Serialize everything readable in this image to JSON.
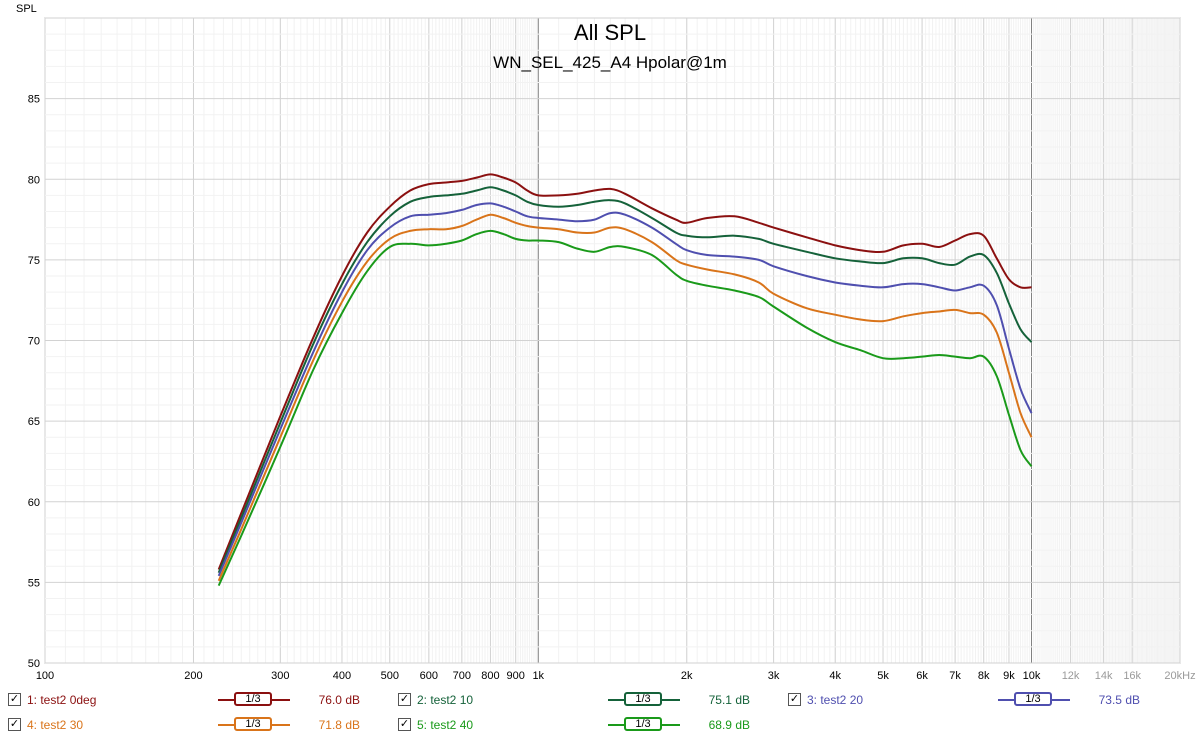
{
  "chart_data": {
    "type": "line",
    "title": "All SPL",
    "subtitle": "WN_SEL_425_A4 Hpolar@1m",
    "ylabel": "SPL",
    "xscale": "log",
    "xlim": [
      100,
      20000
    ],
    "ylim": [
      50,
      90
    ],
    "grid": true,
    "y_ticks": [
      "50",
      "55",
      "60",
      "65",
      "70",
      "75",
      "80",
      "85"
    ],
    "x_ticks": [
      {
        "v": 100,
        "label": "100"
      },
      {
        "v": 200,
        "label": "200"
      },
      {
        "v": 300,
        "label": "300"
      },
      {
        "v": 400,
        "label": "400"
      },
      {
        "v": 500,
        "label": "500"
      },
      {
        "v": 600,
        "label": "600"
      },
      {
        "v": 700,
        "label": "700"
      },
      {
        "v": 800,
        "label": "800"
      },
      {
        "v": 900,
        "label": "900"
      },
      {
        "v": 1000,
        "label": "1k"
      },
      {
        "v": 2000,
        "label": "2k"
      },
      {
        "v": 3000,
        "label": "3k"
      },
      {
        "v": 4000,
        "label": "4k"
      },
      {
        "v": 5000,
        "label": "5k"
      },
      {
        "v": 6000,
        "label": "6k"
      },
      {
        "v": 7000,
        "label": "7k"
      },
      {
        "v": 8000,
        "label": "8k"
      },
      {
        "v": 9000,
        "label": "9k"
      },
      {
        "v": 10000,
        "label": "10k"
      },
      {
        "v": 12000,
        "label": "12k"
      },
      {
        "v": 14000,
        "label": "14k"
      },
      {
        "v": 16000,
        "label": "16k"
      },
      {
        "v": 20000,
        "label": "20kHz"
      }
    ],
    "x": [
      225,
      250,
      300,
      350,
      400,
      450,
      500,
      550,
      600,
      650,
      700,
      750,
      800,
      850,
      900,
      950,
      1000,
      1100,
      1200,
      1300,
      1400,
      1500,
      1700,
      1900,
      2000,
      2200,
      2500,
      2800,
      3000,
      3500,
      4000,
      4500,
      5000,
      5500,
      6000,
      6500,
      7000,
      7500,
      8000,
      8500,
      9000,
      9500,
      10000
    ],
    "series": [
      {
        "name": "1: test2 0deg",
        "color": "#8B1010",
        "values": [
          55.8,
          59.3,
          65.3,
          70.2,
          74.0,
          76.7,
          78.3,
          79.3,
          79.7,
          79.8,
          79.9,
          80.1,
          80.3,
          80.1,
          79.8,
          79.3,
          79.0,
          79.0,
          79.1,
          79.3,
          79.4,
          79.1,
          78.2,
          77.5,
          77.3,
          77.6,
          77.7,
          77.3,
          77.0,
          76.4,
          75.9,
          75.6,
          75.5,
          75.9,
          76.0,
          75.8,
          76.2,
          76.6,
          76.5,
          75.1,
          73.8,
          73.3,
          73.3
        ]
      },
      {
        "name": "2: test2 10",
        "color": "#15623A",
        "values": [
          55.6,
          59.0,
          64.9,
          69.8,
          73.5,
          76.1,
          77.7,
          78.6,
          78.9,
          79.0,
          79.1,
          79.3,
          79.5,
          79.3,
          79.0,
          78.6,
          78.4,
          78.3,
          78.4,
          78.6,
          78.7,
          78.5,
          77.6,
          76.7,
          76.5,
          76.4,
          76.5,
          76.3,
          76.0,
          75.5,
          75.1,
          74.9,
          74.8,
          75.1,
          75.1,
          74.8,
          74.7,
          75.2,
          75.3,
          74.2,
          72.3,
          70.7,
          69.9
        ]
      },
      {
        "name": "3: test2 20",
        "color": "#4F4FAF",
        "values": [
          55.4,
          58.7,
          64.5,
          69.3,
          73.0,
          75.6,
          77.0,
          77.7,
          77.8,
          77.9,
          78.1,
          78.4,
          78.5,
          78.3,
          78.0,
          77.7,
          77.6,
          77.5,
          77.4,
          77.5,
          77.9,
          77.8,
          77.0,
          76.0,
          75.6,
          75.3,
          75.2,
          75.0,
          74.6,
          74.0,
          73.6,
          73.4,
          73.3,
          73.5,
          73.5,
          73.3,
          73.1,
          73.3,
          73.4,
          72.2,
          69.5,
          67.0,
          65.5
        ]
      },
      {
        "name": "4: test2 30",
        "color": "#D9741A",
        "values": [
          55.1,
          58.3,
          64.0,
          68.8,
          72.4,
          74.9,
          76.3,
          76.8,
          76.9,
          76.9,
          77.1,
          77.5,
          77.8,
          77.6,
          77.3,
          77.1,
          77.0,
          76.9,
          76.7,
          76.7,
          77.0,
          76.9,
          76.1,
          75.0,
          74.7,
          74.4,
          74.1,
          73.6,
          72.9,
          72.0,
          71.6,
          71.3,
          71.2,
          71.5,
          71.7,
          71.8,
          71.9,
          71.7,
          71.6,
          70.5,
          68.0,
          65.5,
          64.0
        ]
      },
      {
        "name": "5: test2 40",
        "color": "#1A9A1A",
        "values": [
          54.8,
          57.9,
          63.4,
          68.2,
          71.7,
          74.3,
          75.8,
          76.0,
          75.9,
          76.0,
          76.2,
          76.6,
          76.8,
          76.6,
          76.3,
          76.2,
          76.2,
          76.1,
          75.7,
          75.5,
          75.8,
          75.8,
          75.3,
          74.1,
          73.7,
          73.4,
          73.1,
          72.7,
          72.1,
          70.8,
          69.9,
          69.4,
          68.9,
          68.9,
          69.0,
          69.1,
          69.0,
          68.9,
          69.0,
          67.8,
          65.4,
          63.2,
          62.2
        ]
      }
    ]
  },
  "legend": {
    "smoothing_label": "1/3",
    "check_mark": "✓",
    "items": [
      {
        "name": "1: test2 0deg",
        "value": "76.0 dB",
        "color": "#8B1010"
      },
      {
        "name": "2: test2 10",
        "value": "75.1 dB",
        "color": "#15623A"
      },
      {
        "name": "3: test2 20",
        "value": "73.5 dB",
        "color": "#4F4FAF"
      },
      {
        "name": "4: test2 30",
        "value": "71.8 dB",
        "color": "#D9741A"
      },
      {
        "name": "5: test2 40",
        "value": "68.9 dB",
        "color": "#1A9A1A"
      }
    ]
  }
}
